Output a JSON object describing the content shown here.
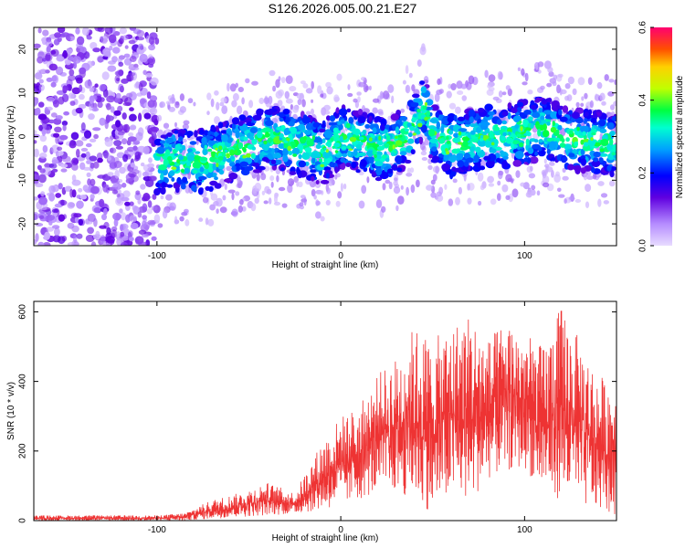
{
  "title": "S126.2026.005.00.21.E27",
  "colors": {
    "snr_line": "#ee3333"
  },
  "chart_data": [
    {
      "type": "heatmap",
      "xlabel": "Height of straight line (km)",
      "ylabel": "Frequency (Hz)",
      "xlim": [
        -167,
        150
      ],
      "ylim": [
        -25,
        25
      ],
      "xticks": [
        -100,
        0,
        100
      ],
      "yticks": [
        -20,
        -10,
        0,
        10,
        20
      ],
      "colorbar": {
        "label": "Normalized spectral amplitude",
        "range": [
          0.0,
          0.6
        ],
        "ticks": [
          "0.0",
          "0.2",
          "0.4",
          "0.6"
        ]
      },
      "ridge": {
        "x": [
          -167,
          -100,
          -90,
          -80,
          -70,
          -60,
          -50,
          -40,
          -30,
          -20,
          -10,
          0,
          10,
          20,
          30,
          40,
          45,
          50,
          60,
          70,
          80,
          90,
          100,
          110,
          120,
          130,
          140,
          150
        ],
        "freq_hz": [
          0,
          -6,
          -5,
          -6,
          -5,
          -3,
          -2,
          0,
          -1,
          -2,
          -4,
          0,
          -1,
          -3,
          -2,
          2,
          7,
          1,
          -2,
          -1,
          0,
          0,
          1,
          2,
          0,
          -1,
          -1,
          -2
        ]
      }
    },
    {
      "type": "line",
      "xlabel": "Height of straight line (km)",
      "ylabel": "SNR (10 * v/v)",
      "xlim": [
        -167,
        150
      ],
      "ylim": [
        0,
        630
      ],
      "xticks": [
        -100,
        0,
        100
      ],
      "yticks": [
        0,
        200,
        400,
        600
      ],
      "envelope": {
        "x": [
          -167,
          -100,
          -85,
          -70,
          -55,
          -40,
          -25,
          -10,
          0,
          10,
          20,
          30,
          40,
          50,
          60,
          70,
          80,
          90,
          100,
          110,
          120,
          130,
          140,
          150
        ],
        "upper": [
          15,
          15,
          22,
          60,
          80,
          110,
          80,
          230,
          300,
          330,
          420,
          470,
          560,
          520,
          560,
          600,
          520,
          580,
          540,
          500,
          620,
          520,
          420,
          400
        ],
        "lower": [
          0,
          0,
          0,
          5,
          10,
          15,
          20,
          30,
          40,
          60,
          80,
          80,
          60,
          20,
          70,
          50,
          120,
          140,
          150,
          80,
          60,
          40,
          30,
          10
        ]
      }
    }
  ]
}
